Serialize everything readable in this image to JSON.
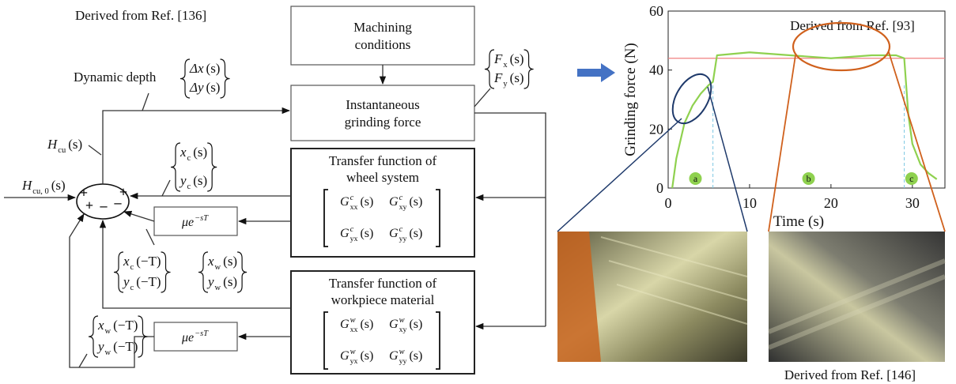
{
  "diagram": {
    "source": "Derived from Ref. [136]",
    "machining_conditions": [
      "Machining",
      "conditions"
    ],
    "grinding_force": [
      "Instantaneous",
      "grinding force"
    ],
    "wheel_system": {
      "title": [
        "Transfer function of",
        "wheel system"
      ],
      "matrix": [
        [
          {
            "base": "G",
            "sub": "xx",
            "sup": "c",
            "arg": "(s)"
          },
          {
            "base": "G",
            "sub": "xy",
            "sup": "c",
            "arg": "(s)"
          }
        ],
        [
          {
            "base": "G",
            "sub": "yx",
            "sup": "c",
            "arg": "(s)"
          },
          {
            "base": "G",
            "sub": "yy",
            "sup": "c",
            "arg": "(s)"
          }
        ]
      ]
    },
    "workpiece": {
      "title": [
        "Transfer function of",
        "workpiece material"
      ],
      "matrix": [
        [
          {
            "base": "G",
            "sub": "xx",
            "sup": "w",
            "arg": "(s)"
          },
          {
            "base": "G",
            "sub": "xy",
            "sup": "w",
            "arg": "(s)"
          }
        ],
        [
          {
            "base": "G",
            "sub": "yx",
            "sup": "w",
            "arg": "(s)"
          },
          {
            "base": "G",
            "sub": "yy",
            "sup": "w",
            "arg": "(s)"
          }
        ]
      ]
    },
    "delay_wheel": {
      "base": "μe",
      "sup": "−sT"
    },
    "delay_workpiece": {
      "base": "μe",
      "sup": "−sT"
    },
    "dynamic_depth": {
      "label": "Dynamic depth",
      "terms": [
        {
          "base": "Δx",
          "arg": "(s)"
        },
        {
          "base": "Δy",
          "arg": "(s)"
        }
      ]
    },
    "force_vector": [
      {
        "base": "F",
        "sub": "x",
        "arg": "(s)"
      },
      {
        "base": "F",
        "sub": "y",
        "arg": "(s)"
      }
    ],
    "h_cu": {
      "base": "H",
      "sub": "cu",
      "arg": "(s)"
    },
    "h_cu0": {
      "base": "H",
      "sub": "cu, 0",
      "arg": "(s)"
    },
    "wheel_displacement": [
      {
        "base": "x",
        "sub": "c",
        "arg": "(s)"
      },
      {
        "base": "y",
        "sub": "c",
        "arg": "(s)"
      }
    ],
    "wheel_delayed": [
      {
        "base": "x",
        "sub": "c",
        "arg": "(−T)"
      },
      {
        "base": "y",
        "sub": "c",
        "arg": "(−T)"
      }
    ],
    "workpiece_displacement": [
      {
        "base": "x",
        "sub": "w",
        "arg": "(s)"
      },
      {
        "base": "y",
        "sub": "w",
        "arg": "(s)"
      }
    ],
    "workpiece_delayed": [
      {
        "base": "x",
        "sub": "w",
        "arg": "(−T)"
      },
      {
        "base": "y",
        "sub": "w",
        "arg": "(−T)"
      }
    ],
    "signs": [
      "+",
      "+",
      "–",
      "–",
      "+"
    ]
  },
  "chart_data": {
    "type": "line",
    "annotation": "Derived from Ref. [93]",
    "y_label": "Grinding force (N)",
    "x_label": "Time (s)",
    "x": [
      0.5,
      1,
      2,
      3,
      4,
      5,
      5.5,
      6,
      10,
      15,
      20,
      25,
      28,
      29,
      29.5,
      30,
      31,
      32,
      33
    ],
    "values": [
      0,
      10,
      22,
      28,
      32,
      35,
      36,
      45,
      46,
      45,
      44,
      45,
      45,
      44,
      25,
      15,
      8,
      5,
      3
    ],
    "color": "#8fd14f",
    "reference_line": {
      "value": 44,
      "color": "#f08080"
    },
    "phase_bounds": [
      5.5,
      29
    ],
    "phase_labels": [
      "a",
      "b",
      "c"
    ],
    "xlim": [
      0,
      34
    ],
    "ylim": [
      0,
      60
    ],
    "xticks": [
      0,
      10,
      20,
      30
    ],
    "yticks": [
      0,
      20,
      40,
      60
    ]
  },
  "photo_source": "Derived from Ref. [146]"
}
